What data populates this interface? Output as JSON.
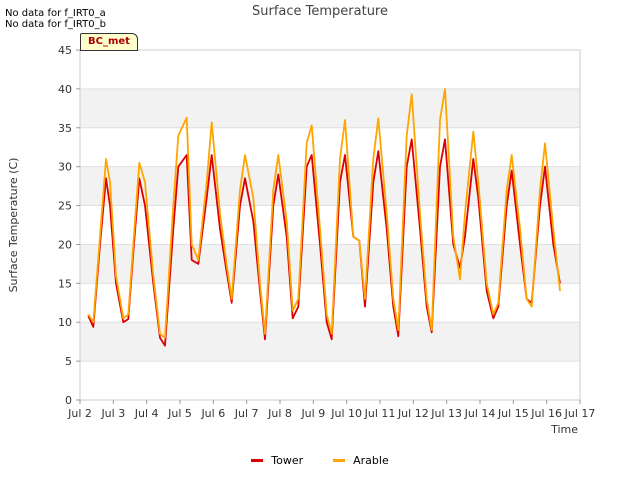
{
  "notes": [
    "No data for f_IRT0_a",
    "No data for f_IRT0_b"
  ],
  "badge_label": "BC_met",
  "chart_data": {
    "type": "line",
    "title": "Surface Temperature",
    "xlabel": "Time",
    "ylabel": "Surface Temperature (C)",
    "ylim": [
      0,
      45
    ],
    "xlim": [
      2,
      17
    ],
    "yticks": [
      0,
      5,
      10,
      15,
      20,
      25,
      30,
      35,
      40,
      45
    ],
    "xtick_values": [
      2,
      3,
      4,
      5,
      6,
      7,
      8,
      9,
      10,
      11,
      12,
      13,
      14,
      15,
      16,
      17
    ],
    "xtick_labels": [
      "Jul 2",
      "Jul 3",
      "Jul 4",
      "Jul 5",
      "Jul 6",
      "Jul 7",
      "Jul 8",
      "Jul 9",
      "Jul 10",
      "Jul 11",
      "Jul 12",
      "Jul 13",
      "Jul 14",
      "Jul 15",
      "Jul 16",
      "Jul 17"
    ],
    "x_unit": "day of July",
    "grid": true,
    "legend_position": "bottom-center",
    "series": [
      {
        "name": "Tower",
        "color": "#dd0000",
        "x": [
          2.25,
          2.4,
          2.6,
          2.78,
          2.9,
          3.08,
          3.3,
          3.45,
          3.6,
          3.78,
          3.95,
          4.2,
          4.4,
          4.55,
          4.8,
          4.95,
          5.2,
          5.35,
          5.55,
          5.8,
          5.95,
          6.2,
          6.38,
          6.55,
          6.8,
          6.95,
          7.2,
          7.4,
          7.55,
          7.8,
          7.95,
          8.2,
          8.38,
          8.55,
          8.8,
          8.95,
          9.2,
          9.4,
          9.55,
          9.8,
          9.95,
          10.2,
          10.38,
          10.55,
          10.8,
          10.95,
          11.2,
          11.4,
          11.55,
          11.8,
          11.95,
          12.2,
          12.4,
          12.55,
          12.8,
          12.95,
          13.2,
          13.4,
          13.55,
          13.8,
          13.95,
          14.2,
          14.4,
          14.55,
          14.8,
          14.95,
          15.2,
          15.4,
          15.55,
          15.8,
          15.95,
          16.2,
          16.4
        ],
        "values": [
          10.8,
          9.4,
          20.0,
          28.5,
          25.0,
          15.0,
          10.0,
          10.4,
          19.0,
          28.5,
          25.0,
          15.0,
          8.0,
          7.0,
          22.0,
          30.0,
          31.5,
          18.0,
          17.5,
          26.0,
          31.5,
          22.0,
          17.0,
          12.5,
          25.0,
          28.5,
          23.0,
          14.0,
          7.8,
          25.0,
          29.0,
          21.0,
          10.5,
          12.0,
          30.0,
          31.5,
          20.0,
          10.0,
          7.8,
          28.0,
          31.5,
          21.0,
          20.5,
          12.0,
          28.0,
          32.0,
          22.0,
          12.0,
          8.2,
          30.0,
          33.5,
          22.0,
          12.0,
          8.7,
          30.0,
          33.5,
          20.0,
          17.0,
          21.0,
          31.0,
          26.0,
          14.0,
          10.5,
          12.0,
          25.0,
          29.5,
          20.0,
          13.0,
          12.5,
          25.0,
          30.0,
          20.0,
          15.0
        ]
      },
      {
        "name": "Arable",
        "color": "#ffa500",
        "x": [
          2.25,
          2.4,
          2.6,
          2.78,
          2.9,
          3.08,
          3.3,
          3.45,
          3.6,
          3.78,
          3.95,
          4.2,
          4.4,
          4.55,
          4.8,
          4.95,
          5.2,
          5.35,
          5.55,
          5.8,
          5.95,
          6.2,
          6.38,
          6.55,
          6.8,
          6.95,
          7.2,
          7.4,
          7.55,
          7.8,
          7.95,
          8.2,
          8.38,
          8.55,
          8.8,
          8.95,
          9.2,
          9.4,
          9.55,
          9.8,
          9.95,
          10.2,
          10.38,
          10.55,
          10.8,
          10.95,
          11.2,
          11.4,
          11.55,
          11.8,
          11.95,
          12.2,
          12.4,
          12.55,
          12.8,
          12.95,
          13.2,
          13.4,
          13.55,
          13.8,
          13.95,
          14.2,
          14.4,
          14.55,
          14.8,
          14.95,
          15.2,
          15.4,
          15.55,
          15.8,
          15.95,
          16.2,
          16.4
        ],
        "values": [
          11.0,
          10.0,
          21.0,
          31.0,
          28.0,
          16.0,
          10.5,
          11.0,
          20.0,
          30.5,
          28.0,
          16.0,
          8.5,
          8.0,
          25.0,
          34.0,
          36.3,
          20.0,
          18.0,
          28.0,
          35.7,
          24.0,
          18.0,
          13.0,
          27.0,
          31.5,
          26.0,
          15.0,
          8.5,
          27.0,
          31.5,
          23.0,
          11.5,
          13.0,
          33.0,
          35.3,
          22.0,
          11.0,
          8.5,
          31.0,
          36.0,
          21.0,
          20.5,
          13.0,
          31.0,
          36.2,
          24.0,
          13.0,
          9.0,
          34.0,
          39.3,
          24.0,
          13.0,
          9.0,
          36.0,
          40.0,
          21.0,
          15.5,
          24.0,
          34.5,
          28.0,
          15.0,
          11.0,
          12.5,
          27.0,
          31.5,
          22.0,
          13.0,
          12.0,
          27.0,
          33.0,
          22.0,
          14.0
        ]
      }
    ]
  }
}
